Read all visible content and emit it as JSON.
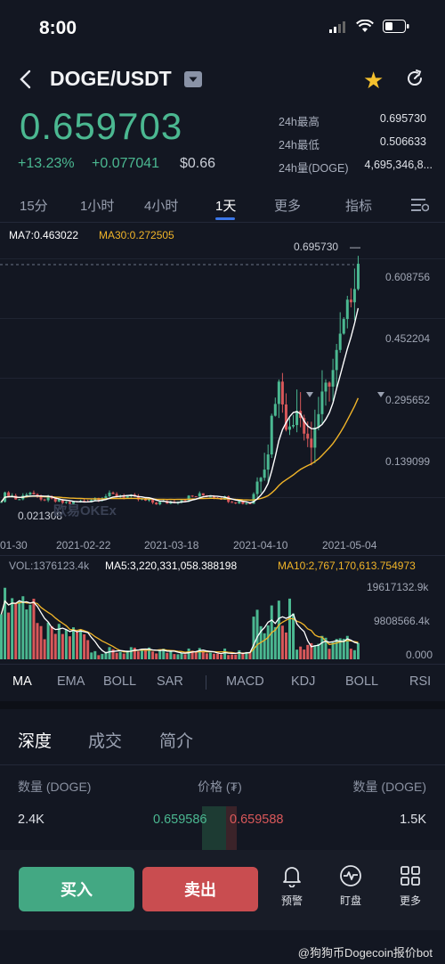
{
  "status": {
    "time": "8:00"
  },
  "header": {
    "pair": "DOGE/USDT"
  },
  "ticker": {
    "last_price": "0.659703",
    "change_pct": "+13.23%",
    "change_abs": "+0.077041",
    "fiat_price": "$0.66",
    "stats": [
      {
        "label": "24h最高",
        "value": "0.695730"
      },
      {
        "label": "24h最低",
        "value": "0.506633"
      },
      {
        "label": "24h量(DOGE)",
        "value": "4,695,346,8..."
      }
    ]
  },
  "timeframes": [
    "15分",
    "1小时",
    "4小时",
    "1天",
    "更多",
    "指标"
  ],
  "active_timeframe": "1天",
  "chart": {
    "ma7_label": "MA7:0.463022",
    "ma30_label": "MA30:0.272505",
    "high_marker": "0.695730",
    "low_marker": "0.021308",
    "watermark": "欧易OKEx",
    "price_ticks": [
      "0.608756",
      "0.452204",
      "0.295652",
      "0.139099"
    ],
    "date_ticks": [
      "01-30",
      "2021-02-22",
      "2021-03-18",
      "2021-04-10",
      "2021-05-04"
    ],
    "vol_label": "VOL:1376123.4k",
    "ma5_vol_label": "MA5:3,220,331,058.388198",
    "ma10_vol_label": "MA10:2,767,170,613.754973",
    "vol_ticks": [
      "19617132.9k",
      "9808566.4k",
      "0.000"
    ],
    "colors": {
      "up": "#4bb891",
      "down": "#d9585a",
      "ma7": "#ffffff",
      "ma30": "#f0b429"
    }
  },
  "indicators": [
    "MA",
    "EMA",
    "BOLL",
    "SAR",
    "MACD",
    "KDJ",
    "BOLL",
    "RSI"
  ],
  "sections": [
    "深度",
    "成交",
    "简介"
  ],
  "orderbook": {
    "headers": {
      "bid_qty": "数量 (DOGE)",
      "price": "价格 (₮)",
      "ask_qty": "数量 (DOGE)"
    },
    "rows": [
      {
        "bid_qty": "2.4K",
        "bid_price": "0.659586",
        "ask_price": "0.659588",
        "ask_qty": "1.5K"
      }
    ]
  },
  "actions": {
    "buy": "买入",
    "sell": "卖出",
    "alert": "预警",
    "watch": "盯盘",
    "more": "更多"
  },
  "watermark": "@狗狗币Dogecoin报价bot"
}
